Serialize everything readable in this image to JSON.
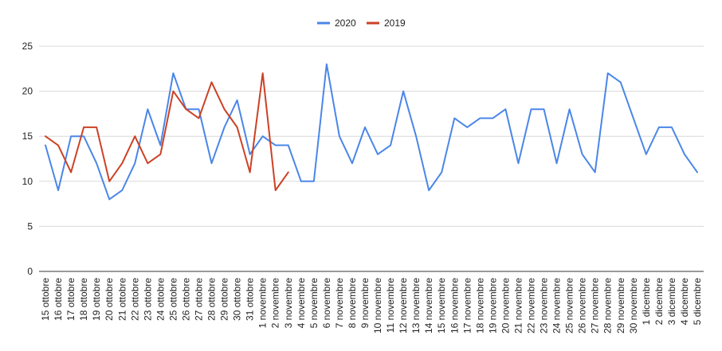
{
  "chart_data": {
    "type": "line",
    "title": "",
    "xlabel": "",
    "ylabel": "",
    "ylim": [
      0,
      25
    ],
    "yticks": [
      0,
      5,
      10,
      15,
      20,
      25
    ],
    "grid": true,
    "legend_position": "top",
    "categories": [
      "15 ottobre",
      "16 ottobre",
      "17 ottobre",
      "18 ottobre",
      "19 ottobre",
      "20 ottobre",
      "21 ottobre",
      "22 ottobre",
      "23 ottobre",
      "24 ottobre",
      "25 ottobre",
      "26 ottobre",
      "27 ottobre",
      "28 ottobre",
      "29 ottobre",
      "30 ottobre",
      "31 ottobre",
      "1 novembre",
      "2 novembre",
      "3 novembre",
      "4 novembre",
      "5 novembre",
      "6 novembre",
      "7 novembre",
      "8 novembre",
      "9 novembre",
      "10 novembre",
      "11 novembre",
      "12 novembre",
      "13 novembre",
      "14 novembre",
      "15 novembre",
      "16 novembre",
      "17 novembre",
      "18 novembre",
      "19 novembre",
      "20 novembre",
      "21 novembre",
      "22 novembre",
      "23 novembre",
      "24 novembre",
      "25 novembre",
      "26 novembre",
      "27 novembre",
      "28 novembre",
      "29 novembre",
      "30 novembre",
      "1 dicembre",
      "2 dicembre",
      "3 dicembre",
      "4 dicembre",
      "5 dicembre"
    ],
    "series": [
      {
        "name": "2020",
        "color": "#4a86e8",
        "values": [
          14,
          9,
          15,
          15,
          12,
          8,
          9,
          12,
          18,
          14,
          22,
          18,
          18,
          12,
          16,
          19,
          13,
          15,
          14,
          14,
          10,
          10,
          23,
          15,
          12,
          16,
          13,
          14,
          20,
          15,
          9,
          11,
          17,
          16,
          17,
          17,
          18,
          12,
          18,
          18,
          12,
          18,
          13,
          11,
          22,
          21,
          17,
          13,
          16,
          16,
          13,
          11
        ]
      },
      {
        "name": "2019",
        "color": "#cc4125",
        "values": [
          15,
          14,
          11,
          16,
          16,
          10,
          12,
          15,
          12,
          13,
          20,
          18,
          17,
          21,
          18,
          16,
          11,
          22,
          9,
          11,
          null,
          null,
          null,
          null,
          null,
          null,
          null,
          null,
          null,
          null,
          null,
          null,
          null,
          null,
          null,
          null,
          null,
          null,
          null,
          null,
          null,
          null,
          null,
          null,
          null,
          null,
          null,
          null,
          null,
          null,
          null,
          null
        ]
      }
    ]
  }
}
